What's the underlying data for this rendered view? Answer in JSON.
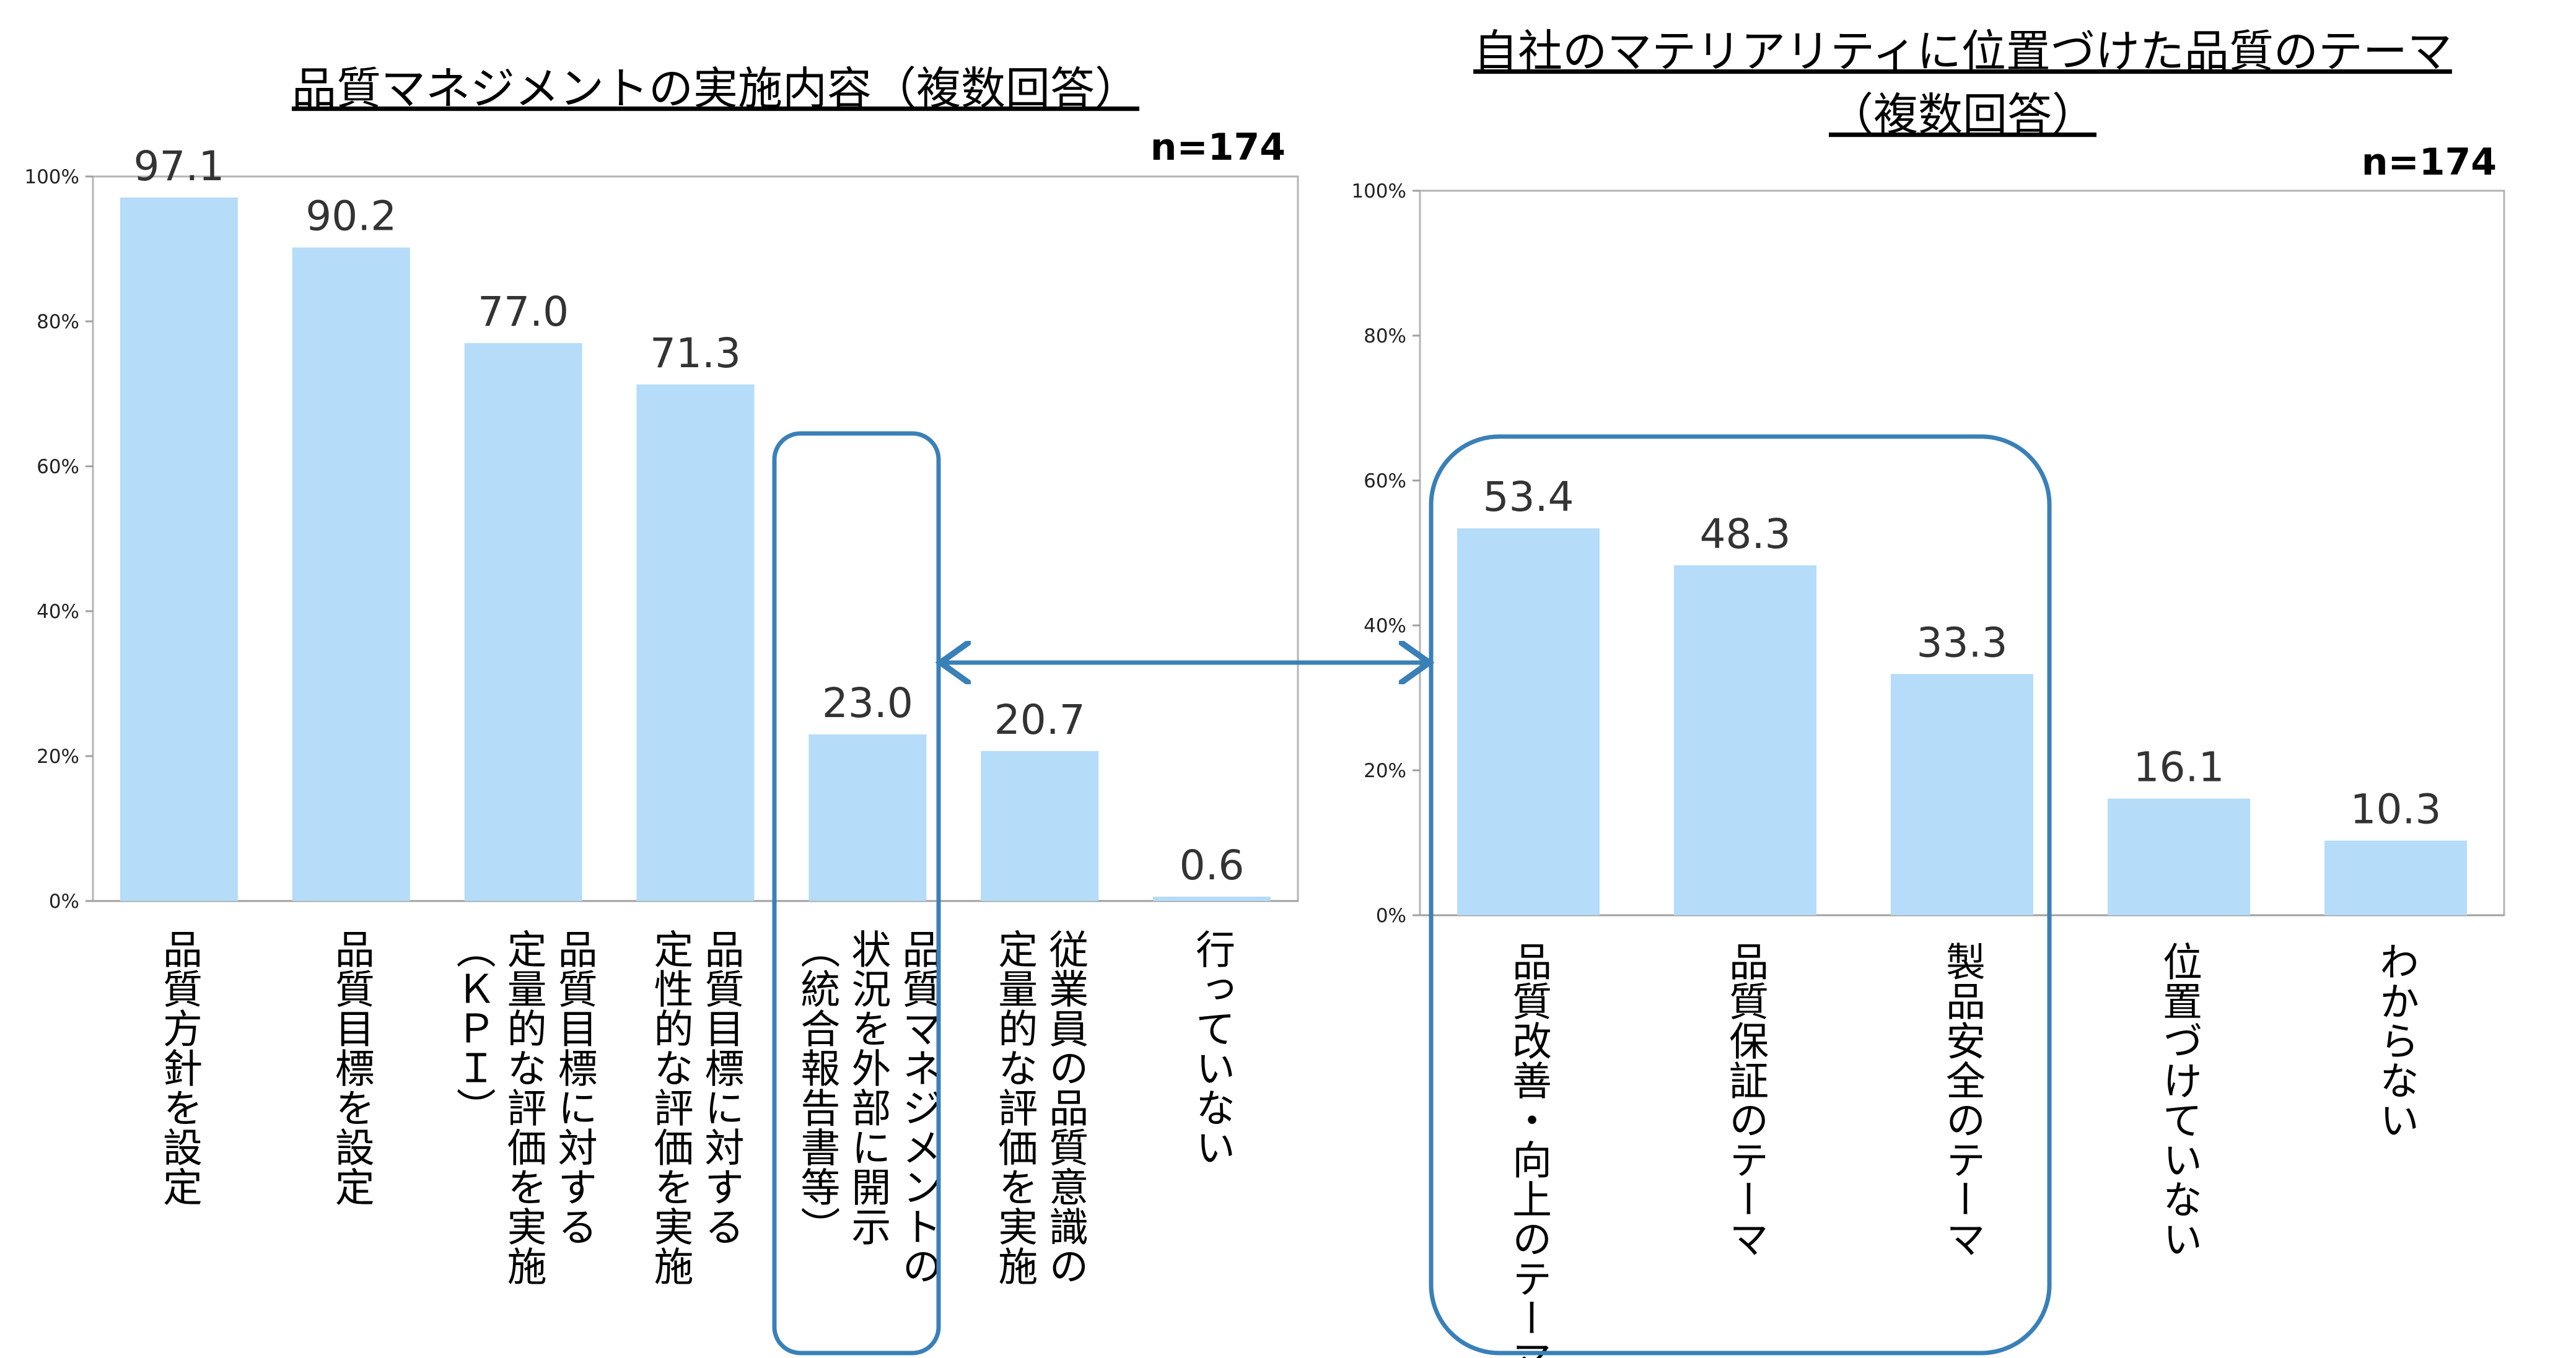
{
  "chart_data": [
    {
      "type": "bar",
      "title": "品質マネジメントの実施内容（複数回答）",
      "n_label": "n=174",
      "ylim": [
        0,
        100
      ],
      "yticks": [
        "0%",
        "20%",
        "40%",
        "60%",
        "80%",
        "100%"
      ],
      "categories": [
        [
          "品質方針を設定"
        ],
        [
          "品質目標を設定"
        ],
        [
          "品質目標に対する",
          "定量的な評価を実施",
          "（ＫＰＩ）"
        ],
        [
          "品質目標に対する",
          "定性的な評価を実施"
        ],
        [
          "品質マネジメントの",
          "状況を外部に開示",
          "（統合報告書等）"
        ],
        [
          "従業員の品質意識の",
          "定量的な評価を実施"
        ],
        [
          "行っていない"
        ]
      ],
      "values": [
        97.1,
        90.2,
        77.0,
        71.3,
        23.0,
        20.7,
        0.6
      ],
      "value_labels": [
        "97.1",
        "90.2",
        "77.0",
        "71.3",
        "23.0",
        "20.7",
        "0.6"
      ],
      "highlight_index": 4,
      "bar_color": "#b5dcf8"
    },
    {
      "type": "bar",
      "title": [
        "自社のマテリアリティに位置づけた品質のテーマ",
        "（複数回答）"
      ],
      "n_label": "n=174",
      "ylim": [
        0,
        100
      ],
      "yticks": [
        "0%",
        "20%",
        "40%",
        "60%",
        "80%",
        "100%"
      ],
      "categories": [
        [
          "品質改善・向上のテーマ"
        ],
        [
          "品質保証のテーマ"
        ],
        [
          "製品安全のテーマ"
        ],
        [
          "位置づけていない"
        ],
        [
          "わからない"
        ]
      ],
      "values": [
        53.4,
        48.3,
        33.3,
        16.1,
        10.3
      ],
      "value_labels": [
        "53.4",
        "48.3",
        "33.3",
        "16.1",
        "10.3"
      ],
      "highlight_range": [
        0,
        2
      ],
      "bar_color": "#b5dcf8"
    }
  ],
  "accent_color": "#3a80b8"
}
